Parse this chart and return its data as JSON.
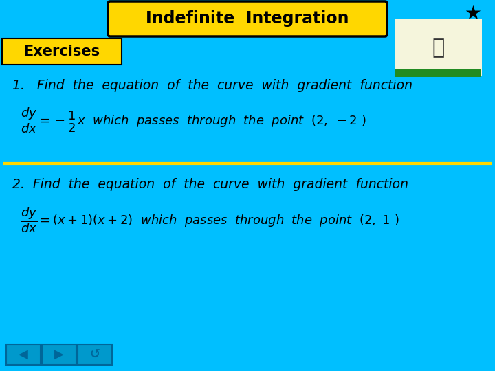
{
  "bg_color": "#00BFFF",
  "title_text": "Indefinite  Integration",
  "title_box_color": "#FFD700",
  "title_box_edge": "#000000",
  "exercises_label": "Exercises",
  "exercises_box_color": "#FFD700",
  "exercises_box_edge": "#000000",
  "divider_color": "#FFD700",
  "text_color": "#000000",
  "nav_color": "#0099CC",
  "nav_icon_color": "#006699",
  "star_color": "#000000"
}
